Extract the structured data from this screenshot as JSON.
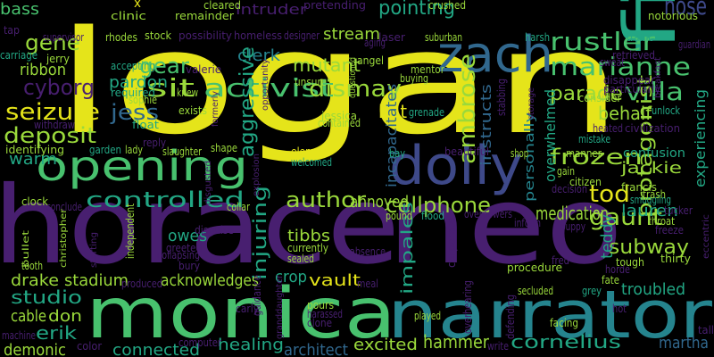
{
  "palette": {
    "background": "#000000",
    "yellow": "#e5e41a",
    "lime": "#9ad93b",
    "green": "#48c16e",
    "teal": "#22a784",
    "cyan": "#25848e",
    "blue": "#31688e",
    "indigo": "#3e4989",
    "purple": "#481f70",
    "deep": "#440154"
  },
  "words": [
    {
      "text": "logan",
      "color": "yellow"
    },
    {
      "text": "horace",
      "color": "purple"
    },
    {
      "text": "neo",
      "color": "purple"
    },
    {
      "text": "monica",
      "color": "green"
    },
    {
      "text": "narrator",
      "color": "cyan"
    },
    {
      "text": "film",
      "color": "teal"
    },
    {
      "text": "dolly",
      "color": "indigo"
    },
    {
      "text": "zach",
      "color": "blue"
    },
    {
      "text": "opening",
      "color": "green"
    },
    {
      "text": "sit",
      "color": "lime"
    },
    {
      "text": "activist",
      "color": "green"
    },
    {
      "text": "rustler",
      "color": "green"
    },
    {
      "text": "nose",
      "color": "indigo"
    },
    {
      "text": "marianne",
      "color": "green"
    },
    {
      "text": "villa",
      "color": "green"
    },
    {
      "text": "gene",
      "color": "lime"
    },
    {
      "text": "bass",
      "color": "green"
    },
    {
      "text": "dismay",
      "color": "lime"
    },
    {
      "text": "intruder",
      "color": "purple"
    },
    {
      "text": "pointing",
      "color": "teal"
    },
    {
      "text": "mutant",
      "color": "lime"
    },
    {
      "text": "stream",
      "color": "lime"
    },
    {
      "text": "parade",
      "color": "lime"
    },
    {
      "text": "behalf",
      "color": "lime"
    },
    {
      "text": "gear",
      "color": "green"
    },
    {
      "text": "clerk",
      "color": "cyan"
    },
    {
      "text": "cyborg",
      "color": "purple"
    },
    {
      "text": "ribbon",
      "color": "lime"
    },
    {
      "text": "seizure",
      "color": "yellow"
    },
    {
      "text": "deposit",
      "color": "lime"
    },
    {
      "text": "pardon",
      "color": "teal"
    },
    {
      "text": "jess",
      "color": "blue"
    },
    {
      "text": "hat",
      "color": "yellow"
    },
    {
      "text": "ambrose",
      "color": "lime"
    },
    {
      "text": "frozen",
      "color": "lime"
    },
    {
      "text": "warm",
      "color": "teal"
    },
    {
      "text": "aggressive",
      "color": "teal"
    },
    {
      "text": "tod",
      "color": "yellow"
    },
    {
      "text": "jackie",
      "color": "lime"
    },
    {
      "text": "gaunt",
      "color": "lime"
    },
    {
      "text": "protagonist",
      "color": "lime"
    },
    {
      "text": "controlled",
      "color": "teal"
    },
    {
      "text": "author",
      "color": "lime"
    },
    {
      "text": "cellphone",
      "color": "lime"
    },
    {
      "text": "lauren",
      "color": "teal"
    },
    {
      "text": "medication",
      "color": "lime"
    },
    {
      "text": "annoyed",
      "color": "lime"
    },
    {
      "text": "owes",
      "color": "teal"
    },
    {
      "text": "tibbs",
      "color": "lime"
    },
    {
      "text": "injuring",
      "color": "teal"
    },
    {
      "text": "subway",
      "color": "lime"
    },
    {
      "text": "teddy",
      "color": "teal"
    },
    {
      "text": "drake",
      "color": "lime"
    },
    {
      "text": "stadium",
      "color": "lime"
    },
    {
      "text": "acknowledges",
      "color": "lime"
    },
    {
      "text": "crop",
      "color": "teal"
    },
    {
      "text": "vault",
      "color": "yellow"
    },
    {
      "text": "impales",
      "color": "teal"
    },
    {
      "text": "studio",
      "color": "teal"
    },
    {
      "text": "troubled",
      "color": "teal"
    },
    {
      "text": "cable",
      "color": "lime"
    },
    {
      "text": "don",
      "color": "lime"
    },
    {
      "text": "erik",
      "color": "teal"
    },
    {
      "text": "demonic",
      "color": "lime"
    },
    {
      "text": "connected",
      "color": "teal"
    },
    {
      "text": "healing",
      "color": "teal"
    },
    {
      "text": "architect",
      "color": "blue"
    },
    {
      "text": "excited",
      "color": "lime"
    },
    {
      "text": "hammer",
      "color": "lime"
    },
    {
      "text": "cornelius",
      "color": "teal"
    },
    {
      "text": "martha",
      "color": "blue"
    },
    {
      "text": "incapacitates",
      "color": "blue"
    },
    {
      "text": "instructs",
      "color": "blue"
    },
    {
      "text": "personally",
      "color": "cyan"
    },
    {
      "text": "overwhelmed",
      "color": "teal"
    },
    {
      "text": "experiencing",
      "color": "teal"
    },
    {
      "text": "confusion",
      "color": "teal"
    },
    {
      "text": "x",
      "color": "yellow"
    },
    {
      "text": "clinic",
      "color": "lime"
    },
    {
      "text": "cleared",
      "color": "lime"
    },
    {
      "text": "remainder",
      "color": "lime"
    },
    {
      "text": "pretending",
      "color": "purple"
    },
    {
      "text": "crushed",
      "color": "lime"
    },
    {
      "text": "notorious",
      "color": "lime"
    },
    {
      "text": "supervisor",
      "color": "purple"
    },
    {
      "text": "rhodes",
      "color": "lime"
    },
    {
      "text": "stock",
      "color": "lime"
    },
    {
      "text": "possibility",
      "color": "purple"
    },
    {
      "text": "homeless",
      "color": "purple"
    },
    {
      "text": "designer",
      "color": "purple"
    },
    {
      "text": "laser",
      "color": "purple"
    },
    {
      "text": "suburban",
      "color": "lime"
    },
    {
      "text": "harsh",
      "color": "teal"
    },
    {
      "text": "traffic",
      "color": "teal"
    },
    {
      "text": "guardian",
      "color": "purple"
    },
    {
      "text": "carriage",
      "color": "teal"
    },
    {
      "text": "jerry",
      "color": "lime"
    },
    {
      "text": "accepting",
      "color": "teal"
    },
    {
      "text": "valerie",
      "color": "purple"
    },
    {
      "text": "angel",
      "color": "lime"
    },
    {
      "text": "aging",
      "color": "purple"
    },
    {
      "text": "mentor",
      "color": "lime"
    },
    {
      "text": "buying",
      "color": "lime"
    },
    {
      "text": "unsure",
      "color": "lime"
    },
    {
      "text": "questioned",
      "color": "lime"
    },
    {
      "text": "disappear",
      "color": "purple"
    },
    {
      "text": "particularly",
      "color": "purple"
    },
    {
      "text": "required",
      "color": "teal"
    },
    {
      "text": "knew",
      "color": "lime"
    },
    {
      "text": "sophie",
      "color": "lime"
    },
    {
      "text": "exists",
      "color": "lime"
    },
    {
      "text": "formerly",
      "color": "purple"
    },
    {
      "text": "opportunity",
      "color": "purple"
    },
    {
      "text": "jessica",
      "color": "lime"
    },
    {
      "text": "contained",
      "color": "lime"
    },
    {
      "text": "grenade",
      "color": "teal"
    },
    {
      "text": "storage",
      "color": "purple"
    },
    {
      "text": "unlock",
      "color": "teal"
    },
    {
      "text": "consider",
      "color": "lime"
    },
    {
      "text": "withdraw",
      "color": "purple"
    },
    {
      "text": "float",
      "color": "teal"
    },
    {
      "text": "heated",
      "color": "purple"
    },
    {
      "text": "civilization",
      "color": "purple"
    },
    {
      "text": "identifying",
      "color": "lime"
    },
    {
      "text": "garden",
      "color": "teal"
    },
    {
      "text": "lady",
      "color": "lime"
    },
    {
      "text": "reply",
      "color": "purple"
    },
    {
      "text": "slaughter",
      "color": "lime"
    },
    {
      "text": "shape",
      "color": "lime"
    },
    {
      "text": "element",
      "color": "yellow"
    },
    {
      "text": "welcomed",
      "color": "teal"
    },
    {
      "text": "beautiful",
      "color": "purple"
    },
    {
      "text": "shop",
      "color": "lime"
    },
    {
      "text": "manner",
      "color": "lime"
    },
    {
      "text": "mistake",
      "color": "teal"
    },
    {
      "text": "gain",
      "color": "lime"
    },
    {
      "text": "citizen",
      "color": "lime"
    },
    {
      "text": "francis",
      "color": "lime"
    },
    {
      "text": "smuggling",
      "color": "teal"
    },
    {
      "text": "bay",
      "color": "teal"
    },
    {
      "text": "decision",
      "color": "purple"
    },
    {
      "text": "trash",
      "color": "lime"
    },
    {
      "text": "tucker",
      "color": "purple"
    },
    {
      "text": "clock",
      "color": "lime"
    },
    {
      "text": "conclude",
      "color": "purple"
    },
    {
      "text": "disgusted",
      "color": "purple"
    },
    {
      "text": "collar",
      "color": "lime"
    },
    {
      "text": "explosion",
      "color": "purple"
    },
    {
      "text": "pound",
      "color": "lime"
    },
    {
      "text": "flood",
      "color": "teal"
    },
    {
      "text": "overpowers",
      "color": "purple"
    },
    {
      "text": "inform",
      "color": "purple"
    },
    {
      "text": "puppy",
      "color": "purple"
    },
    {
      "text": "throat",
      "color": "lime"
    },
    {
      "text": "freeze",
      "color": "purple"
    },
    {
      "text": "eccentric",
      "color": "purple"
    },
    {
      "text": "disguise",
      "color": "purple"
    },
    {
      "text": "bullet",
      "color": "lime"
    },
    {
      "text": "christopher",
      "color": "lime"
    },
    {
      "text": "greeted",
      "color": "purple"
    },
    {
      "text": "collapsing",
      "color": "purple"
    },
    {
      "text": "currently",
      "color": "lime"
    },
    {
      "text": "sealed",
      "color": "lime"
    },
    {
      "text": "absence",
      "color": "purple"
    },
    {
      "text": "corporate",
      "color": "purple"
    },
    {
      "text": "thirty",
      "color": "lime"
    },
    {
      "text": "tough",
      "color": "lime"
    },
    {
      "text": "horde",
      "color": "purple"
    },
    {
      "text": "fred",
      "color": "purple"
    },
    {
      "text": "tooth",
      "color": "lime"
    },
    {
      "text": "starting",
      "color": "purple"
    },
    {
      "text": "independent",
      "color": "lime"
    },
    {
      "text": "bury",
      "color": "purple"
    },
    {
      "text": "procedure",
      "color": "lime"
    },
    {
      "text": "fate",
      "color": "lime"
    },
    {
      "text": "grey",
      "color": "teal"
    },
    {
      "text": "produced",
      "color": "purple"
    },
    {
      "text": "meal",
      "color": "purple"
    },
    {
      "text": "secluded",
      "color": "lime"
    },
    {
      "text": "carly",
      "color": "purple"
    },
    {
      "text": "guidance",
      "color": "purple"
    },
    {
      "text": "granddaughter",
      "color": "purple"
    },
    {
      "text": "pours",
      "color": "lime"
    },
    {
      "text": "harassed",
      "color": "purple"
    },
    {
      "text": "clone",
      "color": "purple"
    },
    {
      "text": "played",
      "color": "lime"
    },
    {
      "text": "defending",
      "color": "purple"
    },
    {
      "text": "overhearing",
      "color": "purple"
    },
    {
      "text": "facing",
      "color": "lime"
    },
    {
      "text": "hot",
      "color": "purple"
    },
    {
      "text": "machine",
      "color": "purple"
    },
    {
      "text": "color",
      "color": "purple"
    },
    {
      "text": "computer",
      "color": "purple"
    },
    {
      "text": "breakfast",
      "color": "purple"
    },
    {
      "text": "sweat",
      "color": "purple"
    },
    {
      "text": "retrieved",
      "color": "purple"
    },
    {
      "text": "stabbing",
      "color": "purple"
    },
    {
      "text": "tap",
      "color": "purple"
    },
    {
      "text": "write",
      "color": "purple"
    },
    {
      "text": "tall",
      "color": "purple"
    }
  ]
}
